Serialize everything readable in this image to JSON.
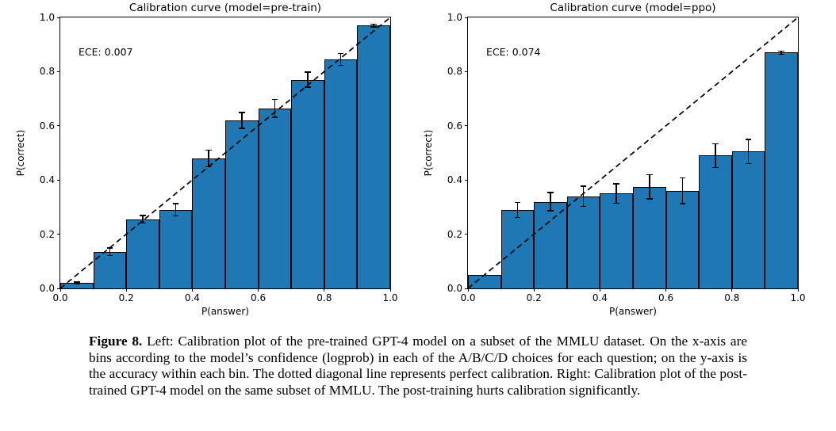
{
  "page": {
    "background": "#ffffff"
  },
  "colors": {
    "bar_fill": "#1f77b4",
    "bar_edge": "#000000",
    "axis": "#000000",
    "diagonal": "#000000",
    "text": "#000000"
  },
  "chart_data": [
    {
      "type": "bar",
      "title": "Calibration curve (model=pre-train)",
      "annotation": "ECE: 0.007",
      "xlabel": "P(answer)",
      "ylabel": "P(correct)",
      "xlim": [
        0.0,
        1.0
      ],
      "ylim": [
        0.0,
        1.0
      ],
      "x_ticks": [
        "0.0",
        "0.2",
        "0.4",
        "0.6",
        "0.8",
        "1.0"
      ],
      "y_ticks": [
        "0.0",
        "0.2",
        "0.4",
        "0.6",
        "0.8",
        "1.0"
      ],
      "bin_edges": [
        0.0,
        0.1,
        0.2,
        0.3,
        0.4,
        0.5,
        0.6,
        0.7,
        0.8,
        0.9,
        1.0
      ],
      "values": [
        0.02,
        0.135,
        0.255,
        0.29,
        0.48,
        0.62,
        0.665,
        0.77,
        0.845,
        0.97
      ],
      "errors": [
        0.005,
        0.016,
        0.016,
        0.025,
        0.033,
        0.032,
        0.035,
        0.03,
        0.024,
        0.007
      ],
      "diagonal_line": "dashed y=x perfect calibration reference",
      "grid": false,
      "legend": false
    },
    {
      "type": "bar",
      "title": "Calibration curve (model=ppo)",
      "annotation": "ECE: 0.074",
      "xlabel": "P(answer)",
      "ylabel": "P(correct)",
      "xlim": [
        0.0,
        1.0
      ],
      "ylim": [
        0.0,
        1.0
      ],
      "x_ticks": [
        "0.0",
        "0.2",
        "0.4",
        "0.6",
        "0.8",
        "1.0"
      ],
      "y_ticks": [
        "0.0",
        "0.2",
        "0.4",
        "0.6",
        "0.8",
        "1.0"
      ],
      "bin_edges": [
        0.0,
        0.1,
        0.2,
        0.3,
        0.4,
        0.5,
        0.6,
        0.7,
        0.8,
        0.9,
        1.0
      ],
      "values": [
        0.05,
        0.29,
        0.32,
        0.34,
        0.35,
        0.375,
        0.36,
        0.49,
        0.505,
        0.87
      ],
      "errors": [
        0,
        0.03,
        0.036,
        0.04,
        0.038,
        0.047,
        0.05,
        0.046,
        0.047,
        0.008
      ],
      "diagonal_line": "dashed y=x perfect calibration reference",
      "grid": false,
      "legend": false
    }
  ],
  "figure": {
    "caption_label": "Figure 8.",
    "caption_text": "Left: Calibration plot of the pre-trained GPT-4 model on a subset of the MMLU dataset. On the x-axis are bins according to the model’s confidence (logprob) in each of the A/B/C/D choices for each question; on the y-axis is the accuracy within each bin. The dotted diagonal line represents perfect calibration. Right: Calibration plot of the post-trained GPT-4 model on the same subset of MMLU. The post-training hurts calibration significantly."
  }
}
